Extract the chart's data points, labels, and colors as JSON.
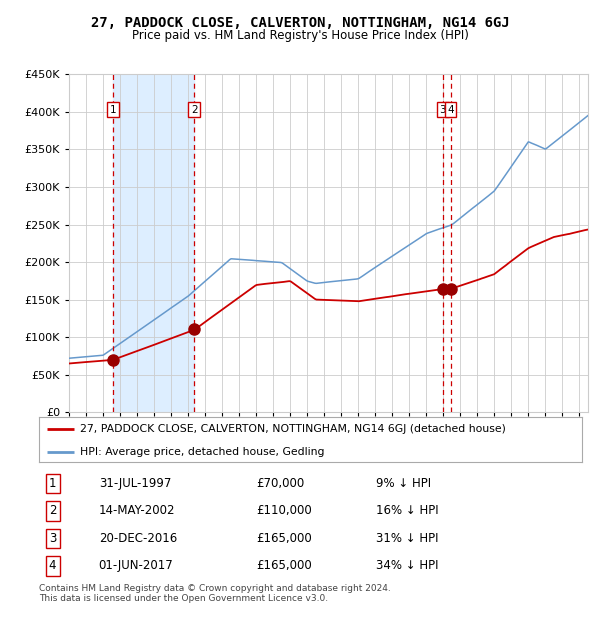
{
  "title": "27, PADDOCK CLOSE, CALVERTON, NOTTINGHAM, NG14 6GJ",
  "subtitle": "Price paid vs. HM Land Registry's House Price Index (HPI)",
  "legend_label_red": "27, PADDOCK CLOSE, CALVERTON, NOTTINGHAM, NG14 6GJ (detached house)",
  "legend_label_blue": "HPI: Average price, detached house, Gedling",
  "footer": "Contains HM Land Registry data © Crown copyright and database right 2024.\nThis data is licensed under the Open Government Licence v3.0.",
  "transactions": [
    {
      "num": 1,
      "date": "31-JUL-1997",
      "price": 70000,
      "pct": "9% ↓ HPI",
      "date_val": 1997.58
    },
    {
      "num": 2,
      "date": "14-MAY-2002",
      "price": 110000,
      "pct": "16% ↓ HPI",
      "date_val": 2002.37
    },
    {
      "num": 3,
      "date": "20-DEC-2016",
      "price": 165000,
      "pct": "31% ↓ HPI",
      "date_val": 2016.97
    },
    {
      "num": 4,
      "date": "01-JUN-2017",
      "price": 165000,
      "pct": "34% ↓ HPI",
      "date_val": 2017.42
    }
  ],
  "ylim": [
    0,
    450000
  ],
  "yticks": [
    0,
    50000,
    100000,
    150000,
    200000,
    250000,
    300000,
    350000,
    400000,
    450000
  ],
  "xlim_start": 1995.0,
  "xlim_end": 2025.5,
  "background_color": "#ffffff",
  "plot_bg_color": "#ffffff",
  "grid_color": "#cccccc",
  "red_color": "#cc0000",
  "blue_color": "#6699cc",
  "shade_color": "#ddeeff",
  "marker_color": "#990000",
  "hpi_piecewise": [
    [
      1995.0,
      72000
    ],
    [
      1997.0,
      76000
    ],
    [
      2002.0,
      155000
    ],
    [
      2004.5,
      205000
    ],
    [
      2007.5,
      200000
    ],
    [
      2009.0,
      175000
    ],
    [
      2009.5,
      172000
    ],
    [
      2012.0,
      178000
    ],
    [
      2016.0,
      238000
    ],
    [
      2017.5,
      250000
    ],
    [
      2020.0,
      295000
    ],
    [
      2022.0,
      360000
    ],
    [
      2023.0,
      350000
    ],
    [
      2025.5,
      395000
    ]
  ],
  "red_piecewise": [
    [
      1995.0,
      65000
    ],
    [
      1997.58,
      70000
    ],
    [
      2002.37,
      110000
    ],
    [
      2006.0,
      170000
    ],
    [
      2008.0,
      175000
    ],
    [
      2009.5,
      150000
    ],
    [
      2012.0,
      148000
    ],
    [
      2016.97,
      165000
    ],
    [
      2017.42,
      165000
    ],
    [
      2020.0,
      185000
    ],
    [
      2022.0,
      220000
    ],
    [
      2023.5,
      235000
    ],
    [
      2025.5,
      245000
    ]
  ]
}
